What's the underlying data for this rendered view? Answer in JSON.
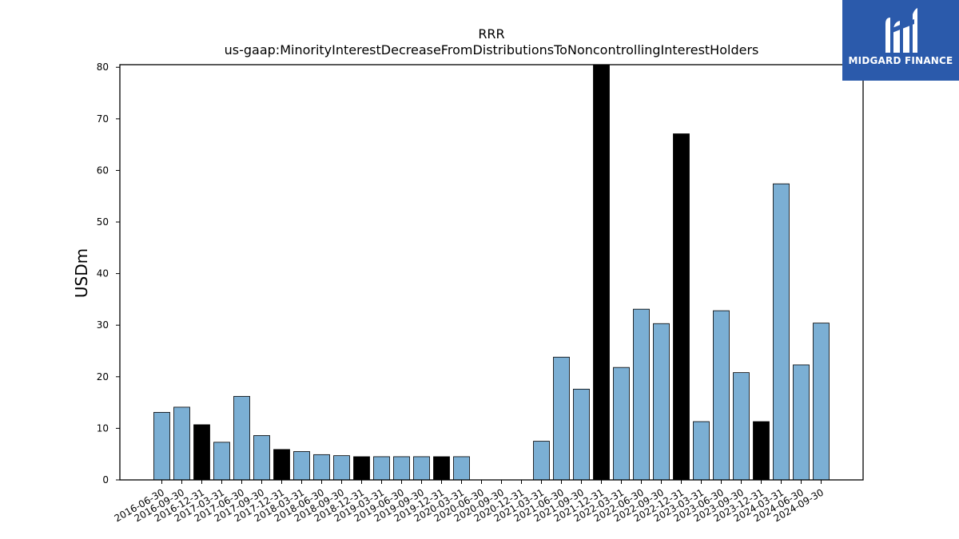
{
  "chart_data": {
    "type": "bar",
    "title": "RRR",
    "subtitle": "us-gaap:MinorityInterestDecreaseFromDistributionsToNoncontrollingInterestHolders",
    "xlabel": "",
    "ylabel": "USDm",
    "ylim": [
      0,
      80.5
    ],
    "yticks": [
      0,
      10,
      20,
      30,
      40,
      50,
      60,
      70,
      80
    ],
    "grid": false,
    "categories": [
      "2016-06-30",
      "2016-09-30",
      "2016-12-31",
      "2017-03-31",
      "2017-06-30",
      "2017-09-30",
      "2017-12-31",
      "2018-03-31",
      "2018-06-30",
      "2018-09-30",
      "2018-12-31",
      "2019-03-31",
      "2019-06-30",
      "2019-09-30",
      "2019-12-31",
      "2020-03-31",
      "2020-06-30",
      "2020-09-30",
      "2020-12-31",
      "2021-03-31",
      "2021-06-30",
      "2021-09-30",
      "2021-12-31",
      "2022-03-31",
      "2022-06-30",
      "2022-09-30",
      "2022-12-31",
      "2023-03-31",
      "2023-06-30",
      "2023-09-30",
      "2023-12-31",
      "2024-03-31",
      "2024-06-30",
      "2024-09-30"
    ],
    "values": [
      13.1,
      14.1,
      10.7,
      7.3,
      16.2,
      8.6,
      5.9,
      5.5,
      4.9,
      4.7,
      4.5,
      4.5,
      4.5,
      4.5,
      4.5,
      4.5,
      0,
      0,
      0,
      7.5,
      23.8,
      17.6,
      80.5,
      21.8,
      33.1,
      30.3,
      67.1,
      11.3,
      32.8,
      20.8,
      11.3,
      57.4,
      22.3,
      30.4
    ],
    "bar_colors": [
      "#7bafd4",
      "#7bafd4",
      "#000000",
      "#7bafd4",
      "#7bafd4",
      "#7bafd4",
      "#000000",
      "#7bafd4",
      "#7bafd4",
      "#7bafd4",
      "#000000",
      "#7bafd4",
      "#7bafd4",
      "#7bafd4",
      "#000000",
      "#7bafd4",
      "#7bafd4",
      "#7bafd4",
      "#000000",
      "#7bafd4",
      "#7bafd4",
      "#7bafd4",
      "#000000",
      "#7bafd4",
      "#7bafd4",
      "#7bafd4",
      "#000000",
      "#7bafd4",
      "#7bafd4",
      "#7bafd4",
      "#000000",
      "#7bafd4",
      "#7bafd4",
      "#7bafd4"
    ]
  },
  "logo": {
    "text": "MIDGARD FINANCE",
    "icon": "midgard-m-logo-icon",
    "background": "#2b5aab",
    "color": "#ffffff"
  }
}
